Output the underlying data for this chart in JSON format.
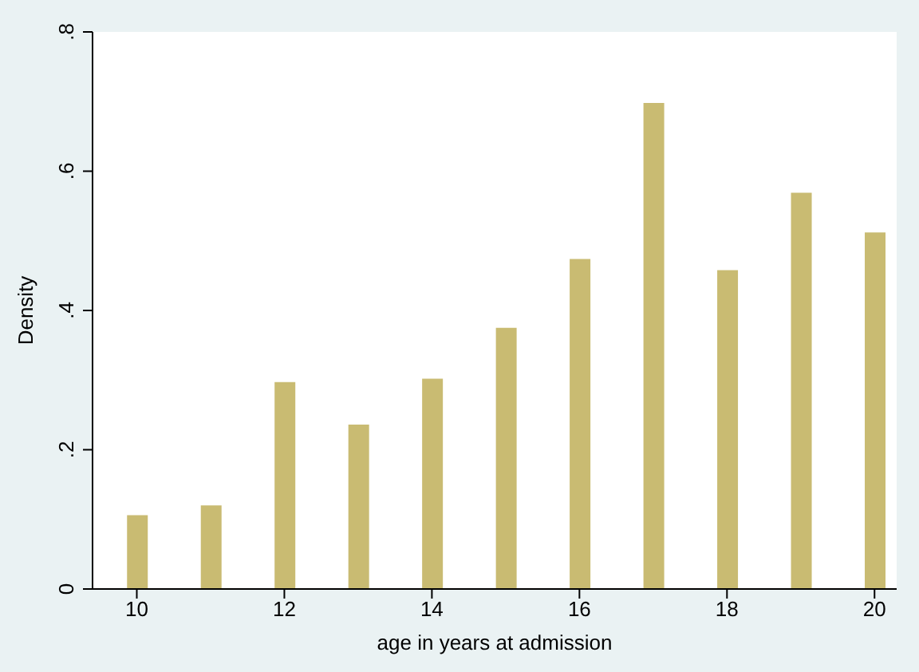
{
  "chart_data": {
    "type": "bar",
    "xlabel": "age in years at admission",
    "ylabel": "Density",
    "x": [
      10,
      11,
      12,
      13,
      14,
      15,
      16,
      17,
      18,
      19,
      20
    ],
    "values": [
      0.106,
      0.12,
      0.297,
      0.236,
      0.302,
      0.375,
      0.474,
      0.698,
      0.458,
      0.569,
      0.512
    ],
    "color": "#c9bb72",
    "xlim": [
      9.4,
      20.3
    ],
    "xticks": [
      10,
      12,
      14,
      16,
      18,
      20
    ],
    "ylim": [
      0,
      0.8
    ],
    "yticks": [
      {
        "value": 0,
        "label": "0"
      },
      {
        "value": 0.2,
        "label": ".2"
      },
      {
        "value": 0.4,
        "label": ".4"
      },
      {
        "value": 0.6,
        "label": ".6"
      },
      {
        "value": 0.8,
        "label": ".8"
      }
    ],
    "grid": false
  }
}
